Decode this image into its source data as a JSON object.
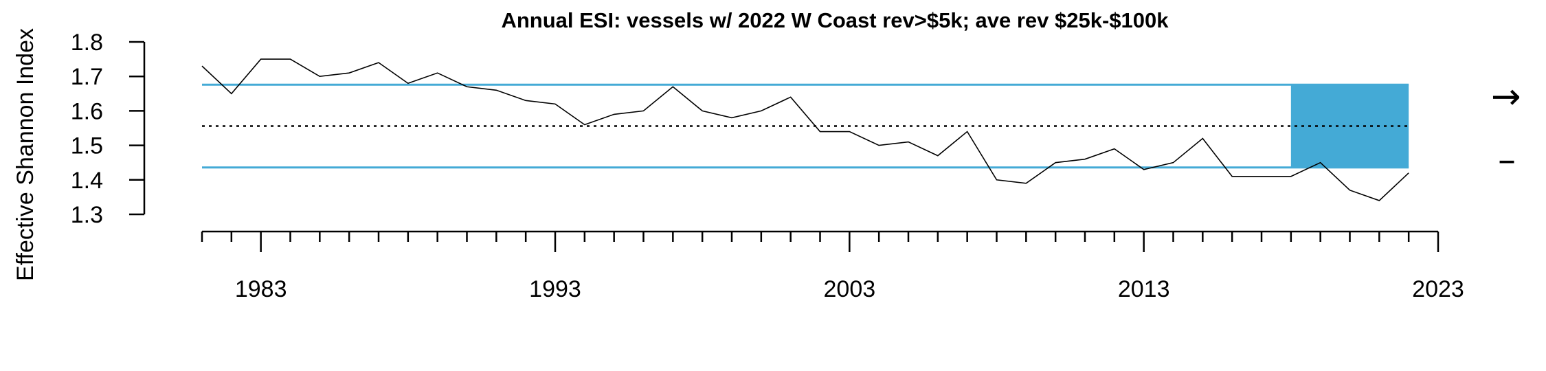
{
  "chart_data": {
    "type": "line",
    "title": "Annual ESI: vessels w/ 2022 W Coast rev>$5k; ave rev $25k-$100k",
    "ylabel": "Effective Shannon Index",
    "xlabel": "",
    "x_tick_labels": [
      "1983",
      "1993",
      "2003",
      "2013",
      "2023"
    ],
    "y_tick_labels": [
      "1.3",
      "1.4",
      "1.5",
      "1.6",
      "1.7",
      "1.8"
    ],
    "xlim": [
      1981,
      2023
    ],
    "ylim": [
      1.3,
      1.8
    ],
    "grid": false,
    "series": [
      {
        "x": [
          1981,
          1982,
          1983,
          1984,
          1985,
          1986,
          1987,
          1988,
          1989,
          1990,
          1991,
          1992,
          1993,
          1994,
          1995,
          1996,
          1997,
          1998,
          1999,
          2000,
          2001,
          2002,
          2003,
          2004,
          2005,
          2006,
          2007,
          2008,
          2009,
          2010,
          2011,
          2012,
          2013,
          2014,
          2015,
          2016,
          2017,
          2018,
          2019,
          2020,
          2021,
          2022
        ],
        "values": [
          1.73,
          1.65,
          1.75,
          1.75,
          1.7,
          1.71,
          1.74,
          1.68,
          1.71,
          1.67,
          1.66,
          1.63,
          1.62,
          1.56,
          1.59,
          1.6,
          1.67,
          1.6,
          1.58,
          1.6,
          1.64,
          1.54,
          1.54,
          1.5,
          1.51,
          1.47,
          1.54,
          1.4,
          1.39,
          1.45,
          1.46,
          1.49,
          1.43,
          1.45,
          1.52,
          1.41,
          1.41,
          1.41,
          1.45,
          1.37,
          1.34,
          1.42
        ],
        "color": "#000000"
      }
    ],
    "mean_line": 1.556,
    "upper_sd_line": 1.676,
    "lower_sd_line": 1.436,
    "recent_period_box": {
      "x_start": 2018,
      "x_end": 2022
    },
    "band_color": "#44AAD6",
    "trend_indicators": {
      "mean_trend": "→",
      "sd_trend": "–"
    }
  }
}
